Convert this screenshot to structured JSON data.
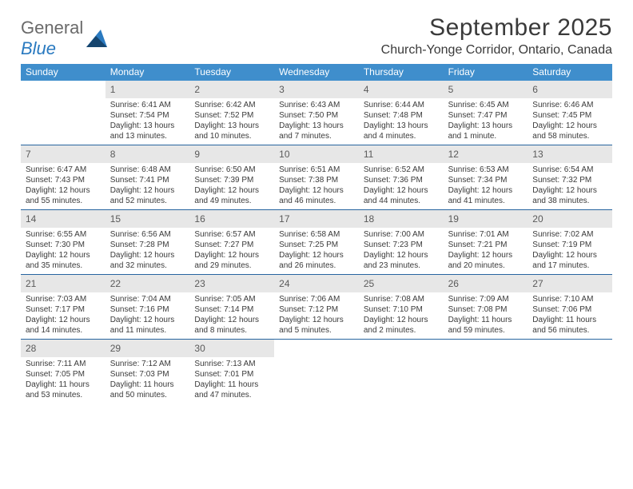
{
  "logo": {
    "word1": "General",
    "word2": "Blue"
  },
  "title": "September 2025",
  "location": "Church-Yonge Corridor, Ontario, Canada",
  "colors": {
    "header_bg": "#3f8ecc",
    "header_text": "#ffffff",
    "divider": "#2765a0",
    "daynum_bg": "#e7e7e7",
    "body_text": "#3a3a3a",
    "logo_gray": "#6a6a6a",
    "logo_blue": "#2a7ac0"
  },
  "day_names": [
    "Sunday",
    "Monday",
    "Tuesday",
    "Wednesday",
    "Thursday",
    "Friday",
    "Saturday"
  ],
  "weeks": [
    [
      null,
      {
        "n": "1",
        "sr": "Sunrise: 6:41 AM",
        "ss": "Sunset: 7:54 PM",
        "dl": "Daylight: 13 hours and 13 minutes."
      },
      {
        "n": "2",
        "sr": "Sunrise: 6:42 AM",
        "ss": "Sunset: 7:52 PM",
        "dl": "Daylight: 13 hours and 10 minutes."
      },
      {
        "n": "3",
        "sr": "Sunrise: 6:43 AM",
        "ss": "Sunset: 7:50 PM",
        "dl": "Daylight: 13 hours and 7 minutes."
      },
      {
        "n": "4",
        "sr": "Sunrise: 6:44 AM",
        "ss": "Sunset: 7:48 PM",
        "dl": "Daylight: 13 hours and 4 minutes."
      },
      {
        "n": "5",
        "sr": "Sunrise: 6:45 AM",
        "ss": "Sunset: 7:47 PM",
        "dl": "Daylight: 13 hours and 1 minute."
      },
      {
        "n": "6",
        "sr": "Sunrise: 6:46 AM",
        "ss": "Sunset: 7:45 PM",
        "dl": "Daylight: 12 hours and 58 minutes."
      }
    ],
    [
      {
        "n": "7",
        "sr": "Sunrise: 6:47 AM",
        "ss": "Sunset: 7:43 PM",
        "dl": "Daylight: 12 hours and 55 minutes."
      },
      {
        "n": "8",
        "sr": "Sunrise: 6:48 AM",
        "ss": "Sunset: 7:41 PM",
        "dl": "Daylight: 12 hours and 52 minutes."
      },
      {
        "n": "9",
        "sr": "Sunrise: 6:50 AM",
        "ss": "Sunset: 7:39 PM",
        "dl": "Daylight: 12 hours and 49 minutes."
      },
      {
        "n": "10",
        "sr": "Sunrise: 6:51 AM",
        "ss": "Sunset: 7:38 PM",
        "dl": "Daylight: 12 hours and 46 minutes."
      },
      {
        "n": "11",
        "sr": "Sunrise: 6:52 AM",
        "ss": "Sunset: 7:36 PM",
        "dl": "Daylight: 12 hours and 44 minutes."
      },
      {
        "n": "12",
        "sr": "Sunrise: 6:53 AM",
        "ss": "Sunset: 7:34 PM",
        "dl": "Daylight: 12 hours and 41 minutes."
      },
      {
        "n": "13",
        "sr": "Sunrise: 6:54 AM",
        "ss": "Sunset: 7:32 PM",
        "dl": "Daylight: 12 hours and 38 minutes."
      }
    ],
    [
      {
        "n": "14",
        "sr": "Sunrise: 6:55 AM",
        "ss": "Sunset: 7:30 PM",
        "dl": "Daylight: 12 hours and 35 minutes."
      },
      {
        "n": "15",
        "sr": "Sunrise: 6:56 AM",
        "ss": "Sunset: 7:28 PM",
        "dl": "Daylight: 12 hours and 32 minutes."
      },
      {
        "n": "16",
        "sr": "Sunrise: 6:57 AM",
        "ss": "Sunset: 7:27 PM",
        "dl": "Daylight: 12 hours and 29 minutes."
      },
      {
        "n": "17",
        "sr": "Sunrise: 6:58 AM",
        "ss": "Sunset: 7:25 PM",
        "dl": "Daylight: 12 hours and 26 minutes."
      },
      {
        "n": "18",
        "sr": "Sunrise: 7:00 AM",
        "ss": "Sunset: 7:23 PM",
        "dl": "Daylight: 12 hours and 23 minutes."
      },
      {
        "n": "19",
        "sr": "Sunrise: 7:01 AM",
        "ss": "Sunset: 7:21 PM",
        "dl": "Daylight: 12 hours and 20 minutes."
      },
      {
        "n": "20",
        "sr": "Sunrise: 7:02 AM",
        "ss": "Sunset: 7:19 PM",
        "dl": "Daylight: 12 hours and 17 minutes."
      }
    ],
    [
      {
        "n": "21",
        "sr": "Sunrise: 7:03 AM",
        "ss": "Sunset: 7:17 PM",
        "dl": "Daylight: 12 hours and 14 minutes."
      },
      {
        "n": "22",
        "sr": "Sunrise: 7:04 AM",
        "ss": "Sunset: 7:16 PM",
        "dl": "Daylight: 12 hours and 11 minutes."
      },
      {
        "n": "23",
        "sr": "Sunrise: 7:05 AM",
        "ss": "Sunset: 7:14 PM",
        "dl": "Daylight: 12 hours and 8 minutes."
      },
      {
        "n": "24",
        "sr": "Sunrise: 7:06 AM",
        "ss": "Sunset: 7:12 PM",
        "dl": "Daylight: 12 hours and 5 minutes."
      },
      {
        "n": "25",
        "sr": "Sunrise: 7:08 AM",
        "ss": "Sunset: 7:10 PM",
        "dl": "Daylight: 12 hours and 2 minutes."
      },
      {
        "n": "26",
        "sr": "Sunrise: 7:09 AM",
        "ss": "Sunset: 7:08 PM",
        "dl": "Daylight: 11 hours and 59 minutes."
      },
      {
        "n": "27",
        "sr": "Sunrise: 7:10 AM",
        "ss": "Sunset: 7:06 PM",
        "dl": "Daylight: 11 hours and 56 minutes."
      }
    ],
    [
      {
        "n": "28",
        "sr": "Sunrise: 7:11 AM",
        "ss": "Sunset: 7:05 PM",
        "dl": "Daylight: 11 hours and 53 minutes."
      },
      {
        "n": "29",
        "sr": "Sunrise: 7:12 AM",
        "ss": "Sunset: 7:03 PM",
        "dl": "Daylight: 11 hours and 50 minutes."
      },
      {
        "n": "30",
        "sr": "Sunrise: 7:13 AM",
        "ss": "Sunset: 7:01 PM",
        "dl": "Daylight: 11 hours and 47 minutes."
      },
      null,
      null,
      null,
      null
    ]
  ]
}
